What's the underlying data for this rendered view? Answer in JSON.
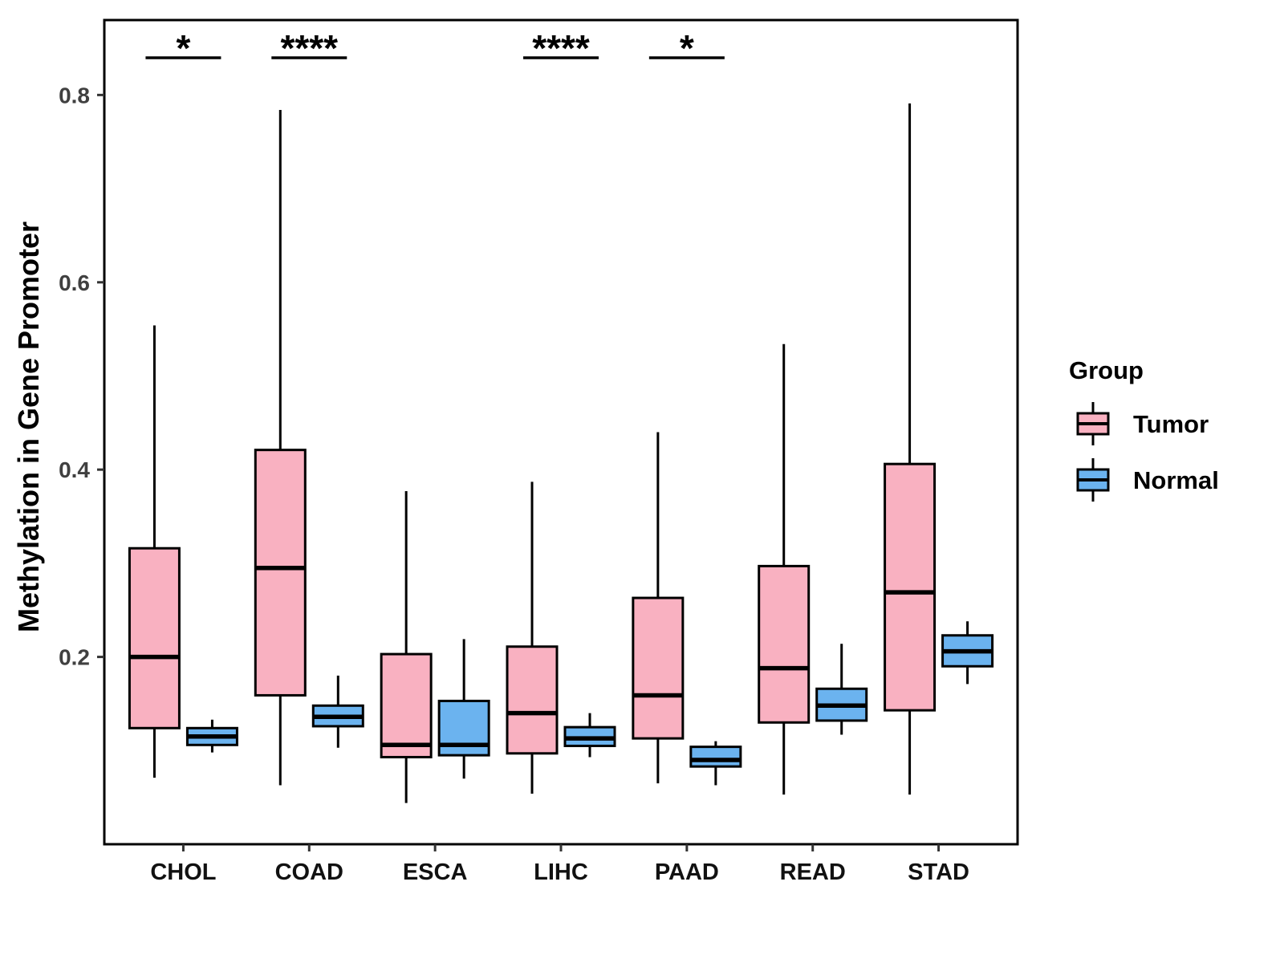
{
  "chart_data": {
    "type": "boxplot",
    "title": "",
    "xlabel": "",
    "ylabel": "Methylation in Gene Promoter",
    "categories": [
      "CHOL",
      "COAD",
      "ESCA",
      "LIHC",
      "PAAD",
      "READ",
      "STAD"
    ],
    "yticks": [
      "0.2",
      "0.4",
      "0.6",
      "0.8"
    ],
    "ytick_values": [
      0.2,
      0.4,
      0.6,
      0.8
    ],
    "ylim": [
      0.0,
      0.88
    ],
    "grid": "off",
    "legend": {
      "title": "Group",
      "position": "right",
      "entries": [
        {
          "label": "Tumor",
          "color": "#F9B1C1"
        },
        {
          "label": "Normal",
          "color": "#6BB3EF"
        }
      ]
    },
    "series": [
      {
        "name": "Tumor",
        "color": "#F9B1C1",
        "boxes": [
          {
            "category": "CHOL",
            "whisker_low": 0.071,
            "q1": 0.124,
            "median": 0.2,
            "q3": 0.316,
            "whisker_high": 0.554
          },
          {
            "category": "COAD",
            "whisker_low": 0.063,
            "q1": 0.159,
            "median": 0.295,
            "q3": 0.421,
            "whisker_high": 0.784
          },
          {
            "category": "ESCA",
            "whisker_low": 0.044,
            "q1": 0.093,
            "median": 0.106,
            "q3": 0.203,
            "whisker_high": 0.377
          },
          {
            "category": "LIHC",
            "whisker_low": 0.054,
            "q1": 0.097,
            "median": 0.14,
            "q3": 0.211,
            "whisker_high": 0.387
          },
          {
            "category": "PAAD",
            "whisker_low": 0.065,
            "q1": 0.113,
            "median": 0.159,
            "q3": 0.263,
            "whisker_high": 0.44
          },
          {
            "category": "READ",
            "whisker_low": 0.053,
            "q1": 0.13,
            "median": 0.188,
            "q3": 0.297,
            "whisker_high": 0.534
          },
          {
            "category": "STAD",
            "whisker_low": 0.053,
            "q1": 0.143,
            "median": 0.269,
            "q3": 0.406,
            "whisker_high": 0.791
          }
        ]
      },
      {
        "name": "Normal",
        "color": "#6BB3EF",
        "boxes": [
          {
            "category": "CHOL",
            "whisker_low": 0.098,
            "q1": 0.106,
            "median": 0.115,
            "q3": 0.124,
            "whisker_high": 0.133
          },
          {
            "category": "COAD",
            "whisker_low": 0.103,
            "q1": 0.126,
            "median": 0.136,
            "q3": 0.148,
            "whisker_high": 0.18
          },
          {
            "category": "ESCA",
            "whisker_low": 0.07,
            "q1": 0.095,
            "median": 0.106,
            "q3": 0.153,
            "whisker_high": 0.219
          },
          {
            "category": "LIHC",
            "whisker_low": 0.093,
            "q1": 0.105,
            "median": 0.113,
            "q3": 0.125,
            "whisker_high": 0.14
          },
          {
            "category": "PAAD",
            "whisker_low": 0.063,
            "q1": 0.083,
            "median": 0.09,
            "q3": 0.104,
            "whisker_high": 0.11
          },
          {
            "category": "READ",
            "whisker_low": 0.117,
            "q1": 0.132,
            "median": 0.148,
            "q3": 0.166,
            "whisker_high": 0.214
          },
          {
            "category": "STAD",
            "whisker_low": 0.171,
            "q1": 0.19,
            "median": 0.206,
            "q3": 0.223,
            "whisker_high": 0.238
          }
        ]
      }
    ],
    "annotations": [
      {
        "category": "CHOL",
        "label": "*"
      },
      {
        "category": "COAD",
        "label": "****"
      },
      {
        "category": "LIHC",
        "label": "****"
      },
      {
        "category": "PAAD",
        "label": "*"
      }
    ]
  }
}
